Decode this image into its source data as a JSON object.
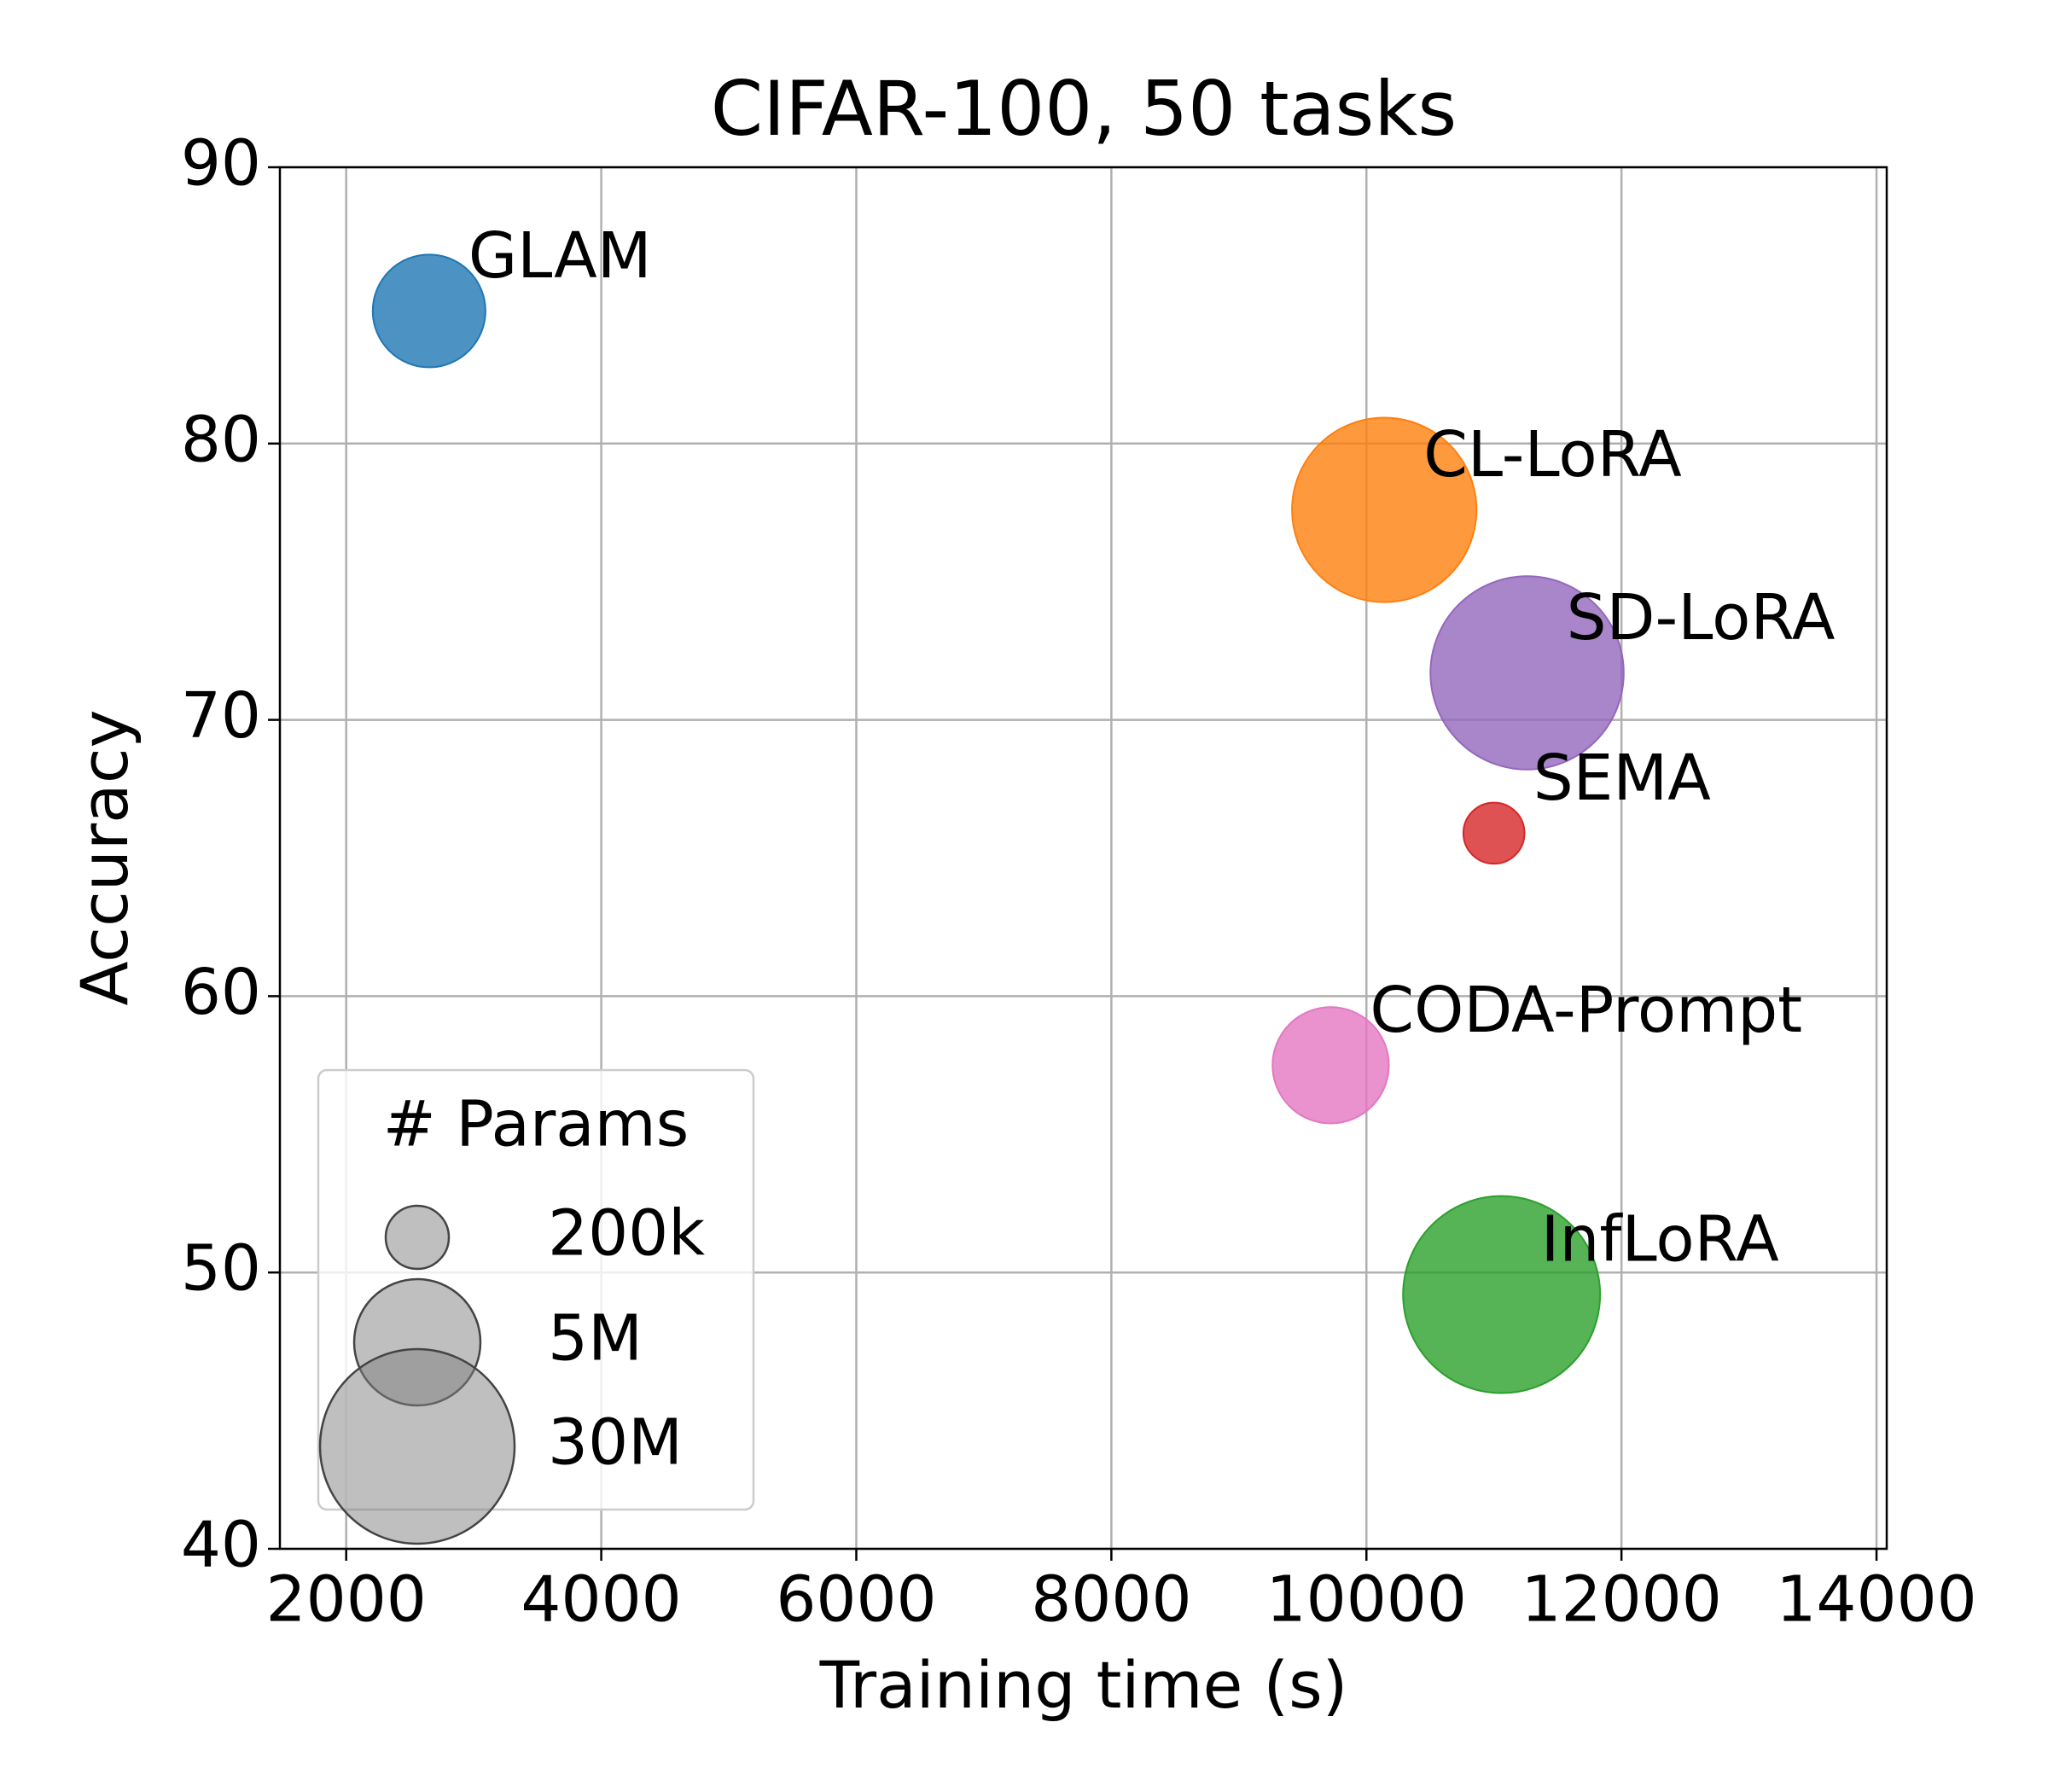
{
  "chart_data": {
    "type": "bubble",
    "title": "CIFAR-100, 50 tasks",
    "x_label": "Training time (s)",
    "y_label": "Accuracy",
    "xlim": [
      1480,
      14080
    ],
    "xticks": [
      2000,
      4000,
      6000,
      8000,
      10000,
      12000,
      14000
    ],
    "ylim": [
      40,
      90
    ],
    "yticks": [
      40,
      50,
      60,
      70,
      80,
      90
    ],
    "grid": true,
    "series": [
      {
        "name": "GLAM",
        "color": "#1f77b4",
        "x": [
          2650
        ],
        "values": [
          84.8
        ],
        "sizes": [
          2500000
        ]
      },
      {
        "name": "CL-LoRA",
        "color": "#ff7f0e",
        "x": [
          10140
        ],
        "values": [
          77.6
        ],
        "sizes": [
          23000000
        ]
      },
      {
        "name": "SD-LoRA",
        "color": "#9467bd",
        "x": [
          11260
        ],
        "values": [
          71.7
        ],
        "sizes": [
          29000000
        ]
      },
      {
        "name": "SEMA",
        "color": "#d62728",
        "x": [
          11000
        ],
        "values": [
          65.9
        ],
        "sizes": [
          180000
        ]
      },
      {
        "name": "CODA-Prompt",
        "color": "#e377c2",
        "x": [
          9720
        ],
        "values": [
          57.5
        ],
        "sizes": [
          3000000
        ]
      },
      {
        "name": "InfLoRA",
        "color": "#2ca02c",
        "x": [
          11060
        ],
        "values": [
          49.2
        ],
        "sizes": [
          32000000
        ]
      }
    ],
    "size_legend": {
      "title": "# Params",
      "legend_position": "lower left",
      "entries": [
        {
          "value": 200000,
          "label": "200k"
        },
        {
          "value": 5000000,
          "label": "5M"
        },
        {
          "value": 30000000,
          "label": "30M"
        }
      ]
    }
  }
}
